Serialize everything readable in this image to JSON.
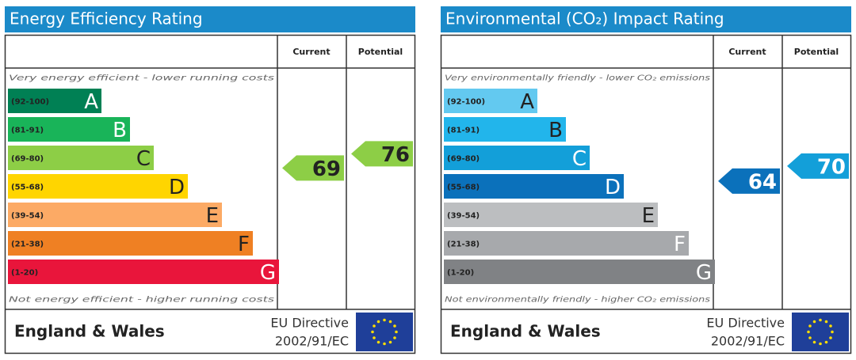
{
  "panels": [
    {
      "title": "Energy Efficiency Rating",
      "current_header": "Current",
      "potential_header": "Potential",
      "top_text": "Very energy efficient - lower running costs",
      "bottom_text": "Not energy efficient - higher running costs",
      "bands": [
        {
          "range": "(92-100)",
          "letter": "A",
          "color": "#008054",
          "letter_color": "#ffffff"
        },
        {
          "range": "(81-91)",
          "letter": "B",
          "color": "#19b459",
          "letter_color": "#ffffff"
        },
        {
          "range": "(69-80)",
          "letter": "C",
          "color": "#8dce46",
          "letter_color": "#222222"
        },
        {
          "range": "(55-68)",
          "letter": "D",
          "color": "#ffd500",
          "letter_color": "#222222"
        },
        {
          "range": "(39-54)",
          "letter": "E",
          "color": "#fcaa65",
          "letter_color": "#222222"
        },
        {
          "range": "(21-38)",
          "letter": "F",
          "color": "#ef8023",
          "letter_color": "#222222"
        },
        {
          "range": "(1-20)",
          "letter": "G",
          "color": "#e9153b",
          "letter_color": "#ffffff"
        }
      ],
      "current": 69,
      "potential": 76,
      "region": "England & Wales",
      "directive": "EU Directive",
      "directive_code": "2002/91/EC"
    },
    {
      "title": "Environmental (CO₂) Impact Rating",
      "current_header": "Current",
      "potential_header": "Potential",
      "top_text": "Very environmentally friendly - lower CO₂ emissions",
      "bottom_text": "Not environmentally friendly - higher CO₂ emissions",
      "bands": [
        {
          "range": "(92-100)",
          "letter": "A",
          "color": "#63c9f0",
          "letter_color": "#222222"
        },
        {
          "range": "(81-91)",
          "letter": "B",
          "color": "#22b5eb",
          "letter_color": "#222222"
        },
        {
          "range": "(69-80)",
          "letter": "C",
          "color": "#139fd9",
          "letter_color": "#ffffff"
        },
        {
          "range": "(55-68)",
          "letter": "D",
          "color": "#0b71bb",
          "letter_color": "#ffffff"
        },
        {
          "range": "(39-54)",
          "letter": "E",
          "color": "#bcbec0",
          "letter_color": "#222222"
        },
        {
          "range": "(21-38)",
          "letter": "F",
          "color": "#a7a9ac",
          "letter_color": "#ffffff"
        },
        {
          "range": "(1-20)",
          "letter": "G",
          "color": "#808285",
          "letter_color": "#ffffff"
        }
      ],
      "current": 64,
      "potential": 70,
      "region": "England & Wales",
      "directive": "EU Directive",
      "directive_code": "2002/91/EC"
    }
  ]
}
